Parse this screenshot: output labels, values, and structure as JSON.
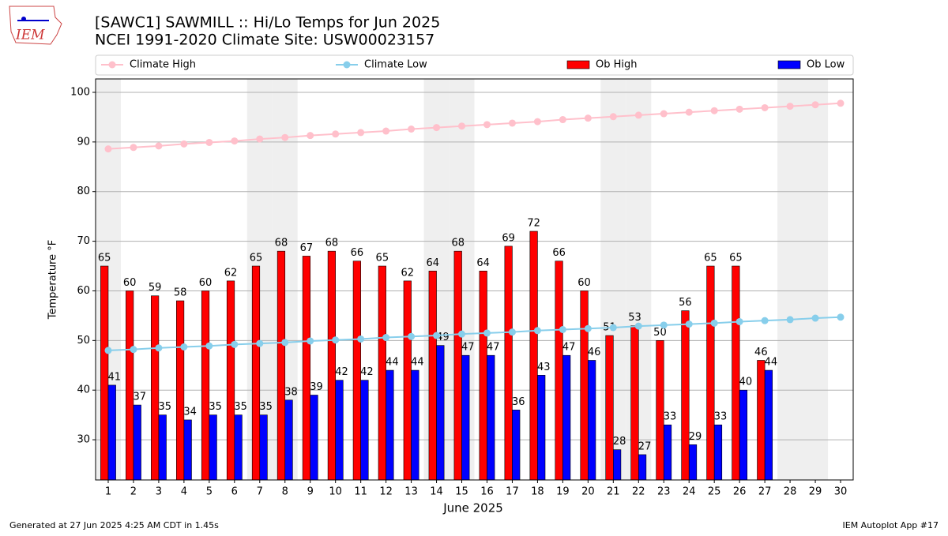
{
  "chart_data": {
    "type": "bar_line",
    "title": "[SAWC1] SAWMILL :: Hi/Lo Temps for Jun 2025",
    "subtitle": "NCEI 1991-2020 Climate Site: USW00023157",
    "xlabel": "June 2025",
    "ylabel": "Temperature °F",
    "footer_left": "Generated at 27 Jun 2025 4:25 AM CDT in 1.45s",
    "footer_right": "IEM Autoplot App #17",
    "logo_text": "IEM",
    "legend": "top",
    "grid": true,
    "weekend_days": [
      1,
      7,
      8,
      14,
      15,
      21,
      22,
      28,
      29
    ],
    "x": [
      1,
      2,
      3,
      4,
      5,
      6,
      7,
      8,
      9,
      10,
      11,
      12,
      13,
      14,
      15,
      16,
      17,
      18,
      19,
      20,
      21,
      22,
      23,
      24,
      25,
      26,
      27,
      28,
      29,
      30
    ],
    "xlim": [
      0.5,
      30.5
    ],
    "xticks": [
      1,
      2,
      3,
      4,
      5,
      6,
      7,
      8,
      9,
      10,
      11,
      12,
      13,
      14,
      15,
      16,
      17,
      18,
      19,
      20,
      21,
      22,
      23,
      24,
      25,
      26,
      27,
      28,
      29,
      30
    ],
    "ylim": [
      21.9,
      102.7
    ],
    "yticks": [
      30,
      40,
      50,
      60,
      70,
      80,
      90,
      100
    ],
    "series": [
      {
        "name": "Climate High",
        "kind": "line",
        "color": "#ffc0cb",
        "values": [
          88.6,
          88.9,
          89.2,
          89.6,
          89.9,
          90.2,
          90.6,
          90.9,
          91.3,
          91.6,
          91.9,
          92.2,
          92.6,
          92.9,
          93.2,
          93.5,
          93.8,
          94.1,
          94.5,
          94.8,
          95.1,
          95.4,
          95.7,
          96.0,
          96.3,
          96.6,
          96.9,
          97.2,
          97.5,
          97.8
        ]
      },
      {
        "name": "Climate Low",
        "kind": "line",
        "color": "#87ceeb",
        "values": [
          48.0,
          48.2,
          48.5,
          48.7,
          48.9,
          49.2,
          49.4,
          49.6,
          49.9,
          50.1,
          50.3,
          50.6,
          50.8,
          51.0,
          51.3,
          51.5,
          51.7,
          52.0,
          52.2,
          52.4,
          52.6,
          52.9,
          53.1,
          53.3,
          53.5,
          53.8,
          54.0,
          54.2,
          54.5,
          54.7
        ]
      },
      {
        "name": "Ob High",
        "kind": "bar",
        "color": "#ff0000",
        "values": [
          65,
          60,
          59,
          58,
          60,
          62,
          65,
          68,
          67,
          68,
          66,
          65,
          62,
          64,
          68,
          64,
          69,
          72,
          66,
          60,
          51,
          53,
          50,
          56,
          65,
          65,
          46,
          null,
          null,
          null
        ]
      },
      {
        "name": "Ob Low",
        "kind": "bar",
        "color": "#0000ff",
        "values": [
          41,
          37,
          35,
          34,
          35,
          35,
          35,
          38,
          39,
          42,
          42,
          44,
          44,
          49,
          47,
          47,
          36,
          43,
          47,
          46,
          28,
          27,
          33,
          29,
          33,
          40,
          44,
          null,
          null,
          null
        ]
      }
    ]
  }
}
